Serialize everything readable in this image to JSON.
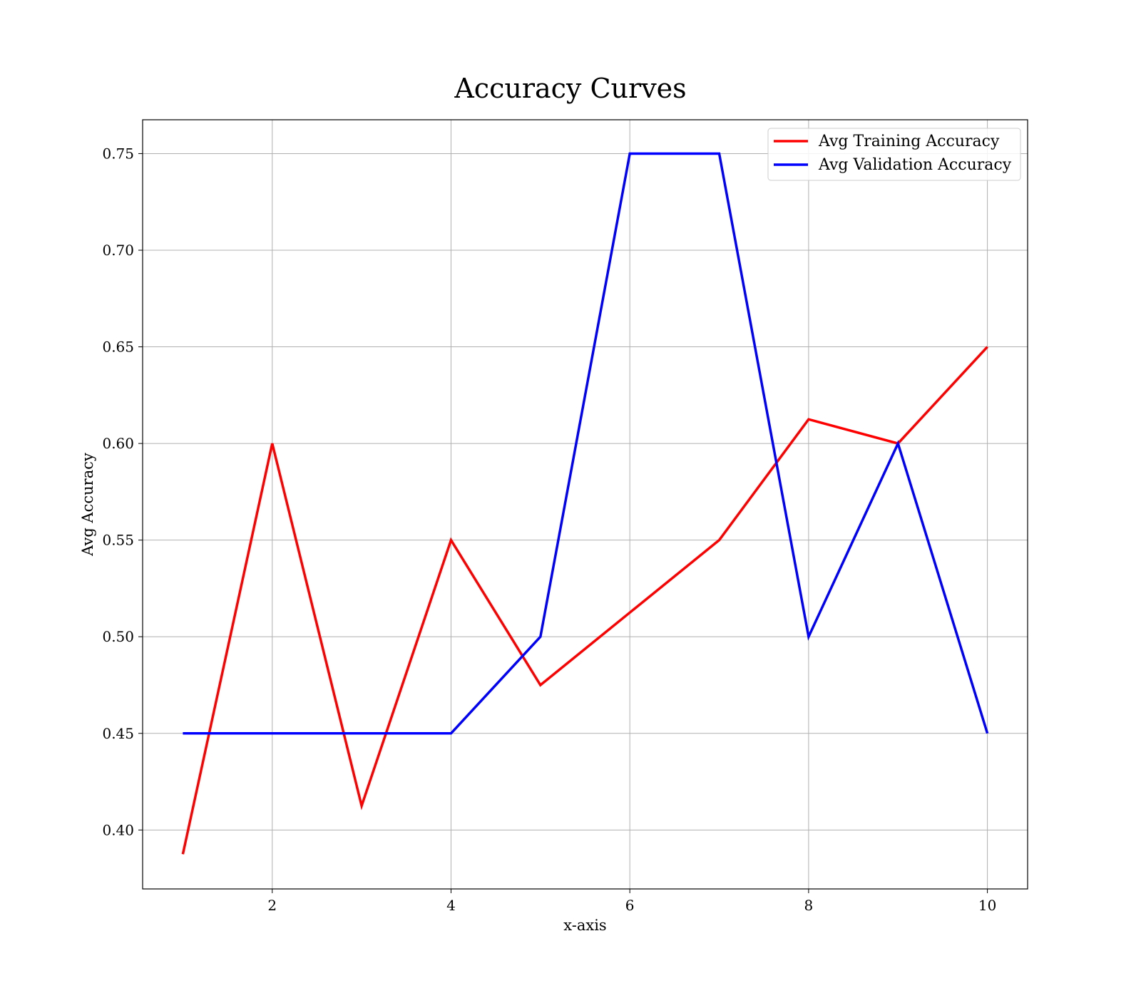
{
  "chart_data": {
    "type": "line",
    "title": "Accuracy Curves",
    "xlabel": "x-axis",
    "ylabel": "Avg Accuracy",
    "x": [
      1,
      2,
      3,
      4,
      5,
      6,
      7,
      8,
      9,
      10
    ],
    "xlim": [
      0.55,
      10.45
    ],
    "ylim": [
      0.3695,
      0.7675
    ],
    "xticks": [
      2,
      4,
      6,
      8,
      10
    ],
    "yticks": [
      0.4,
      0.45,
      0.5,
      0.55,
      0.6,
      0.65,
      0.7,
      0.75
    ],
    "grid": true,
    "legend_position": "top-right",
    "series": [
      {
        "name": "Avg Training Accuracy",
        "color": "#ff0000",
        "values": [
          0.3875,
          0.6,
          0.4125,
          0.55,
          0.475,
          0.5125,
          0.55,
          0.6125,
          0.6,
          0.65
        ]
      },
      {
        "name": "Avg Validation Accuracy",
        "color": "#0000ff",
        "values": [
          0.45,
          0.45,
          0.45,
          0.45,
          0.5,
          0.75,
          0.75,
          0.5,
          0.6,
          0.45
        ]
      }
    ]
  }
}
